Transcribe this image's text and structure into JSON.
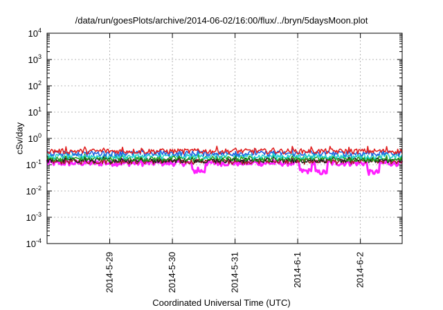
{
  "chart_data": {
    "type": "line",
    "title": "/data/run/goesPlots/archive/2014-06-02/16:00/flux/../bryn/5daysMoon.plot",
    "xlabel": "Coordinated Universal Time (UTC)",
    "ylabel": "cSv/day",
    "y_scale": "log",
    "ylim": [
      0.0001,
      10000
    ],
    "y_ticks": [
      {
        "base": "10",
        "exp": "-4"
      },
      {
        "base": "10",
        "exp": "-3"
      },
      {
        "base": "10",
        "exp": "-2"
      },
      {
        "base": "10",
        "exp": "-1"
      },
      {
        "base": "10",
        "exp": "0"
      },
      {
        "base": "10",
        "exp": "1"
      },
      {
        "base": "10",
        "exp": "2"
      },
      {
        "base": "10",
        "exp": "3"
      },
      {
        "base": "10",
        "exp": "4"
      }
    ],
    "x_ticks": [
      "2014-5-29",
      "2014-5-30",
      "2014-5-31",
      "2014-6-1",
      "2014-6-2"
    ],
    "xlim": [
      "2014-05-28T00:00",
      "2014-06-02T16:00"
    ],
    "grid": true,
    "legend": "none",
    "series": [
      {
        "color": "#e02020",
        "baseline": 0.33,
        "values": "noisy band ~0.25-0.45 across 2014-05-28 to 2014-06-02 16:00"
      },
      {
        "color": "#2060e0",
        "baseline": 0.27,
        "values": "noisy band ~0.2-0.4"
      },
      {
        "color": "#20d0d0",
        "baseline": 0.21,
        "values": "noisy band ~0.17-0.28"
      },
      {
        "color": "#20a020",
        "baseline": 0.17,
        "values": "noisy band ~0.14-0.22"
      },
      {
        "color": "#202020",
        "baseline": 0.15,
        "values": "noisy band ~0.12-0.19"
      },
      {
        "color": "#a02020",
        "baseline": 0.135,
        "values": "noisy band ~0.11-0.17"
      },
      {
        "color": "#ff20ff",
        "baseline": 0.115,
        "values": "noisy band ~0.08-0.15, dips to ~0.05 near 2014-05-30 and 2014-06-01"
      }
    ]
  }
}
